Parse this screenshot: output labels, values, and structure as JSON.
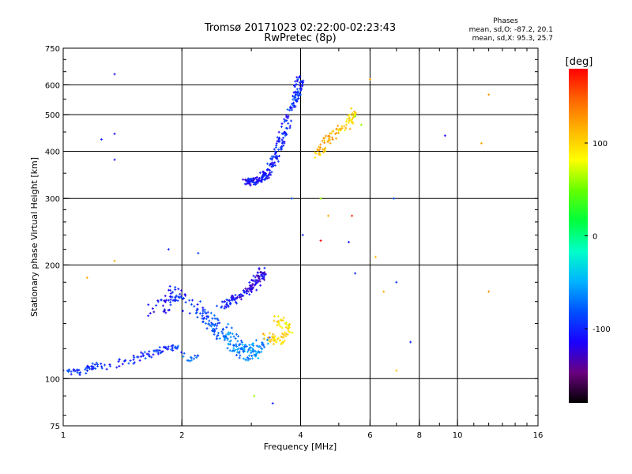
{
  "chart_data": {
    "type": "scatter",
    "title": "Tromsø 20171023 02:22:00-02:23:43",
    "subtitle": "RwPretec (8p)",
    "xlabel": "Frequency [MHz]",
    "ylabel": "Stationary phase Virtual Height [km]",
    "x_scale": "log",
    "y_scale": "log",
    "xlim": [
      1,
      16
    ],
    "ylim": [
      75,
      750
    ],
    "x_ticks": [
      1,
      2,
      4,
      6,
      8,
      10,
      16
    ],
    "x_tick_labels": [
      "1",
      "2",
      "4",
      "6",
      "8",
      "10",
      "16"
    ],
    "x_gridlines": [
      2,
      4,
      6,
      8,
      10
    ],
    "y_ticks": [
      75,
      100,
      200,
      300,
      400,
      500,
      600,
      750
    ],
    "y_tick_labels": [
      "75",
      "100",
      "200",
      "300",
      "400",
      "500",
      "600",
      "750"
    ],
    "y_gridlines": [
      100,
      200,
      300,
      400,
      500,
      600
    ],
    "grid": true,
    "colorbar": {
      "label": "[deg]",
      "range": [
        -180,
        180
      ],
      "ticks": [
        100,
        0,
        -100
      ],
      "tick_labels": [
        "100",
        "0",
        "-100"
      ],
      "colors": [
        "#000000",
        "#6a007f",
        "#1a00ff",
        "#0050ff",
        "#00b4ff",
        "#00ffc8",
        "#00ff3c",
        "#64ff00",
        "#ffff00",
        "#ffb400",
        "#ff6400",
        "#ff0000"
      ]
    },
    "stats": {
      "heading": "Phases",
      "line1": "mean, sd,O: -87.2, 20.1",
      "line2": "mean, sd,X:  95.3, 25.7"
    },
    "clusters": [
      {
        "name": "E-layer O trace",
        "points": [
          [
            1.0,
            106,
            -105
          ],
          [
            1.05,
            105,
            -95
          ],
          [
            1.1,
            103,
            -100
          ],
          [
            1.15,
            106,
            -100
          ],
          [
            1.2,
            108,
            -95
          ],
          [
            1.3,
            107,
            -100
          ],
          [
            1.4,
            110,
            -95
          ],
          [
            1.5,
            112,
            -100
          ],
          [
            1.6,
            115,
            -95
          ],
          [
            1.7,
            117,
            -95
          ],
          [
            1.8,
            120,
            -100
          ],
          [
            1.9,
            122,
            -95
          ],
          [
            2.0,
            118,
            -85
          ],
          [
            2.1,
            112,
            -75
          ],
          [
            2.2,
            115,
            -80
          ]
        ],
        "spread": 0.05,
        "count": 130
      },
      {
        "name": "F1 O traces",
        "points": [
          [
            1.7,
            150,
            -110
          ],
          [
            1.9,
            170,
            -105
          ],
          [
            2.2,
            150,
            -90
          ],
          [
            2.4,
            140,
            -80
          ],
          [
            2.6,
            130,
            -70
          ],
          [
            2.8,
            120,
            -65
          ],
          [
            3.0,
            115,
            -60
          ],
          [
            3.2,
            125,
            -70
          ]
        ],
        "spread": 0.1,
        "count": 260
      },
      {
        "name": "F1 upper cusp",
        "points": [
          [
            2.5,
            155,
            -100
          ],
          [
            2.8,
            165,
            -110
          ],
          [
            3.1,
            180,
            -120
          ],
          [
            3.2,
            195,
            -115
          ]
        ],
        "spread": 0.06,
        "count": 120
      },
      {
        "name": "F1 X trace",
        "points": [
          [
            3.3,
            130,
            110
          ],
          [
            3.5,
            125,
            100
          ],
          [
            3.7,
            135,
            90
          ],
          [
            3.5,
            145,
            95
          ]
        ],
        "spread": 0.06,
        "count": 70
      },
      {
        "name": "F2 O trace",
        "points": [
          [
            2.9,
            330,
            -110
          ],
          [
            3.1,
            335,
            -110
          ],
          [
            3.3,
            350,
            -105
          ],
          [
            3.5,
            400,
            -100
          ],
          [
            3.7,
            480,
            -100
          ],
          [
            3.9,
            560,
            -95
          ],
          [
            4.0,
            630,
            -100
          ]
        ],
        "spread": 0.05,
        "count": 260
      },
      {
        "name": "F2 X trace",
        "points": [
          [
            4.4,
            390,
            100
          ],
          [
            4.6,
            420,
            120
          ],
          [
            4.9,
            450,
            110
          ],
          [
            5.3,
            470,
            95
          ],
          [
            5.5,
            510,
            100
          ]
        ],
        "spread": 0.05,
        "count": 90
      }
    ],
    "outliers": [
      [
        1.35,
        640,
        -110
      ],
      [
        1.35,
        445,
        -110
      ],
      [
        1.25,
        430,
        -100
      ],
      [
        1.35,
        380,
        -110
      ],
      [
        1.85,
        220,
        -100
      ],
      [
        2.2,
        215,
        -90
      ],
      [
        1.15,
        185,
        120
      ],
      [
        1.35,
        205,
        120
      ],
      [
        3.05,
        90,
        60
      ],
      [
        3.4,
        86,
        -100
      ],
      [
        3.8,
        300,
        -80
      ],
      [
        4.05,
        240,
        -100
      ],
      [
        4.5,
        300,
        60
      ],
      [
        4.7,
        270,
        120
      ],
      [
        4.5,
        232,
        180
      ],
      [
        5.3,
        230,
        -110
      ],
      [
        5.4,
        270,
        170
      ],
      [
        5.5,
        190,
        -100
      ],
      [
        6.2,
        210,
        110
      ],
      [
        6.5,
        170,
        120
      ],
      [
        6.9,
        300,
        -80
      ],
      [
        7.0,
        180,
        -95
      ],
      [
        7.0,
        105,
        110
      ],
      [
        7.6,
        125,
        -100
      ],
      [
        9.3,
        440,
        -110
      ],
      [
        11.5,
        420,
        120
      ],
      [
        12.0,
        565,
        125
      ],
      [
        12.0,
        170,
        130
      ],
      [
        5.5,
        495,
        60
      ],
      [
        5.7,
        470,
        60
      ],
      [
        6.0,
        620,
        120
      ]
    ]
  }
}
